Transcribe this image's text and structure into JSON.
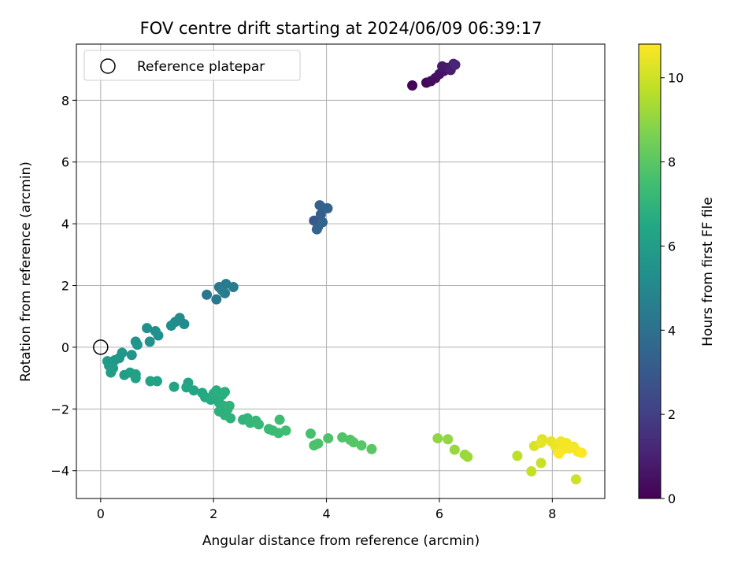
{
  "chart_data": {
    "type": "scatter",
    "title": "FOV centre drift starting at 2024/06/09 06:39:17",
    "xlabel": "Angular distance from reference (arcmin)",
    "ylabel": "Rotation from reference (arcmin)",
    "xlim": [
      -0.43,
      8.93
    ],
    "ylim": [
      -4.9,
      9.82
    ],
    "xticks": [
      0,
      2,
      4,
      6,
      8
    ],
    "yticks": [
      -4,
      -2,
      0,
      2,
      4,
      6,
      8
    ],
    "grid": true,
    "legend": {
      "placement": "top-left",
      "entries": [
        "Reference platepar"
      ]
    },
    "reference_point": {
      "x": 0,
      "y": 0
    },
    "colorbar": {
      "label": "Hours from first FF file",
      "min": 0,
      "max": 10.8,
      "ticks": [
        0,
        2,
        4,
        6,
        8,
        10
      ],
      "colormap": "viridis"
    },
    "points": [
      {
        "x": 5.52,
        "y": 8.48,
        "t": 0.1
      },
      {
        "x": 5.77,
        "y": 8.57,
        "t": 0.2
      },
      {
        "x": 5.85,
        "y": 8.62,
        "t": 0.3
      },
      {
        "x": 5.93,
        "y": 8.72,
        "t": 0.4
      },
      {
        "x": 6.0,
        "y": 8.85,
        "t": 0.5
      },
      {
        "x": 6.08,
        "y": 8.95,
        "t": 0.6
      },
      {
        "x": 6.05,
        "y": 9.1,
        "t": 0.7
      },
      {
        "x": 6.15,
        "y": 9.05,
        "t": 0.8
      },
      {
        "x": 6.2,
        "y": 8.98,
        "t": 0.9
      },
      {
        "x": 6.25,
        "y": 9.18,
        "t": 1.0
      },
      {
        "x": 6.28,
        "y": 9.15,
        "t": 1.1
      },
      {
        "x": 3.78,
        "y": 4.1,
        "t": 3.0
      },
      {
        "x": 3.85,
        "y": 3.9,
        "t": 3.1
      },
      {
        "x": 3.9,
        "y": 4.3,
        "t": 3.2
      },
      {
        "x": 3.95,
        "y": 4.5,
        "t": 3.3
      },
      {
        "x": 3.88,
        "y": 4.6,
        "t": 3.35
      },
      {
        "x": 4.02,
        "y": 4.5,
        "t": 3.4
      },
      {
        "x": 3.93,
        "y": 4.05,
        "t": 3.45
      },
      {
        "x": 3.83,
        "y": 3.82,
        "t": 3.5
      },
      {
        "x": 1.88,
        "y": 1.7,
        "t": 4.2
      },
      {
        "x": 2.05,
        "y": 1.55,
        "t": 4.3
      },
      {
        "x": 2.1,
        "y": 1.95,
        "t": 4.35
      },
      {
        "x": 2.2,
        "y": 1.75,
        "t": 4.4
      },
      {
        "x": 2.22,
        "y": 2.05,
        "t": 4.45
      },
      {
        "x": 2.35,
        "y": 1.95,
        "t": 4.5
      },
      {
        "x": 2.15,
        "y": 1.85,
        "t": 4.55
      },
      {
        "x": 1.4,
        "y": 0.95,
        "t": 5.1
      },
      {
        "x": 1.48,
        "y": 0.75,
        "t": 5.15
      },
      {
        "x": 1.32,
        "y": 0.82,
        "t": 5.2
      },
      {
        "x": 1.25,
        "y": 0.7,
        "t": 5.25
      },
      {
        "x": 0.82,
        "y": 0.62,
        "t": 5.3
      },
      {
        "x": 0.97,
        "y": 0.52,
        "t": 5.35
      },
      {
        "x": 1.02,
        "y": 0.38,
        "t": 5.4
      },
      {
        "x": 0.87,
        "y": 0.18,
        "t": 5.45
      },
      {
        "x": 0.62,
        "y": 0.18,
        "t": 5.5
      },
      {
        "x": 0.65,
        "y": 0.08,
        "t": 5.55
      },
      {
        "x": 0.55,
        "y": -0.25,
        "t": 5.6
      },
      {
        "x": 0.38,
        "y": -0.18,
        "t": 5.65
      },
      {
        "x": 0.33,
        "y": -0.35,
        "t": 5.7
      },
      {
        "x": 0.25,
        "y": -0.42,
        "t": 5.75
      },
      {
        "x": 0.12,
        "y": -0.45,
        "t": 5.8
      },
      {
        "x": 0.15,
        "y": -0.6,
        "t": 5.85
      },
      {
        "x": 0.22,
        "y": -0.68,
        "t": 5.9
      },
      {
        "x": 0.18,
        "y": -0.82,
        "t": 5.95
      },
      {
        "x": 0.42,
        "y": -0.9,
        "t": 6.0
      },
      {
        "x": 0.52,
        "y": -0.82,
        "t": 6.05
      },
      {
        "x": 0.62,
        "y": -0.88,
        "t": 6.1
      },
      {
        "x": 0.62,
        "y": -1.0,
        "t": 6.15
      },
      {
        "x": 0.88,
        "y": -1.1,
        "t": 6.2
      },
      {
        "x": 1.0,
        "y": -1.1,
        "t": 6.25
      },
      {
        "x": 1.3,
        "y": -1.28,
        "t": 6.3
      },
      {
        "x": 1.55,
        "y": -1.15,
        "t": 6.35
      },
      {
        "x": 1.52,
        "y": -1.3,
        "t": 6.4
      },
      {
        "x": 1.65,
        "y": -1.4,
        "t": 6.45
      },
      {
        "x": 1.8,
        "y": -1.48,
        "t": 6.5
      },
      {
        "x": 1.85,
        "y": -1.62,
        "t": 6.55
      },
      {
        "x": 1.95,
        "y": -1.7,
        "t": 6.6
      },
      {
        "x": 2.05,
        "y": -1.65,
        "t": 6.65
      },
      {
        "x": 2.1,
        "y": -1.8,
        "t": 6.7
      },
      {
        "x": 2.0,
        "y": -1.5,
        "t": 6.72
      },
      {
        "x": 2.05,
        "y": -1.4,
        "t": 6.75
      },
      {
        "x": 2.15,
        "y": -1.55,
        "t": 6.78
      },
      {
        "x": 2.2,
        "y": -1.45,
        "t": 6.8
      },
      {
        "x": 2.18,
        "y": -1.9,
        "t": 6.82
      },
      {
        "x": 2.25,
        "y": -2.0,
        "t": 6.85
      },
      {
        "x": 2.1,
        "y": -2.08,
        "t": 6.87
      },
      {
        "x": 2.2,
        "y": -2.2,
        "t": 6.9
      },
      {
        "x": 2.3,
        "y": -2.3,
        "t": 6.92
      },
      {
        "x": 2.28,
        "y": -1.9,
        "t": 6.95
      },
      {
        "x": 2.52,
        "y": -2.35,
        "t": 7.0
      },
      {
        "x": 2.6,
        "y": -2.3,
        "t": 7.05
      },
      {
        "x": 2.65,
        "y": -2.45,
        "t": 7.1
      },
      {
        "x": 2.75,
        "y": -2.38,
        "t": 7.15
      },
      {
        "x": 2.8,
        "y": -2.5,
        "t": 7.2
      },
      {
        "x": 2.98,
        "y": -2.65,
        "t": 7.25
      },
      {
        "x": 3.05,
        "y": -2.7,
        "t": 7.3
      },
      {
        "x": 3.15,
        "y": -2.78,
        "t": 7.35
      },
      {
        "x": 3.17,
        "y": -2.35,
        "t": 7.4
      },
      {
        "x": 3.28,
        "y": -2.7,
        "t": 7.45
      },
      {
        "x": 3.72,
        "y": -2.8,
        "t": 7.6
      },
      {
        "x": 3.78,
        "y": -3.18,
        "t": 7.65
      },
      {
        "x": 3.85,
        "y": -3.12,
        "t": 7.7
      },
      {
        "x": 4.03,
        "y": -2.95,
        "t": 7.75
      },
      {
        "x": 4.28,
        "y": -2.92,
        "t": 7.8
      },
      {
        "x": 4.42,
        "y": -3.0,
        "t": 7.85
      },
      {
        "x": 4.48,
        "y": -3.08,
        "t": 7.9
      },
      {
        "x": 4.62,
        "y": -3.18,
        "t": 7.95
      },
      {
        "x": 4.8,
        "y": -3.3,
        "t": 8.0
      },
      {
        "x": 5.97,
        "y": -2.95,
        "t": 9.0
      },
      {
        "x": 6.15,
        "y": -2.98,
        "t": 9.05
      },
      {
        "x": 6.27,
        "y": -3.32,
        "t": 9.1
      },
      {
        "x": 6.45,
        "y": -3.48,
        "t": 9.15
      },
      {
        "x": 6.5,
        "y": -3.55,
        "t": 9.2
      },
      {
        "x": 7.38,
        "y": -3.52,
        "t": 9.7
      },
      {
        "x": 7.63,
        "y": -4.02,
        "t": 9.8
      },
      {
        "x": 7.8,
        "y": -3.75,
        "t": 9.9
      },
      {
        "x": 8.42,
        "y": -4.28,
        "t": 10.0
      },
      {
        "x": 7.68,
        "y": -3.2,
        "t": 10.2
      },
      {
        "x": 7.82,
        "y": -2.98,
        "t": 10.3
      },
      {
        "x": 7.8,
        "y": -3.1,
        "t": 10.4
      },
      {
        "x": 7.98,
        "y": -3.05,
        "t": 10.45
      },
      {
        "x": 8.05,
        "y": -3.2,
        "t": 10.5
      },
      {
        "x": 8.1,
        "y": -3.4,
        "t": 10.55
      },
      {
        "x": 8.15,
        "y": -3.05,
        "t": 10.6
      },
      {
        "x": 8.2,
        "y": -3.3,
        "t": 10.62
      },
      {
        "x": 8.25,
        "y": -3.1,
        "t": 10.65
      },
      {
        "x": 8.3,
        "y": -3.28,
        "t": 10.67
      },
      {
        "x": 8.38,
        "y": -3.22,
        "t": 10.7
      },
      {
        "x": 8.45,
        "y": -3.38,
        "t": 10.72
      },
      {
        "x": 8.52,
        "y": -3.42,
        "t": 10.75
      },
      {
        "x": 8.12,
        "y": -3.45,
        "t": 10.78
      }
    ]
  }
}
